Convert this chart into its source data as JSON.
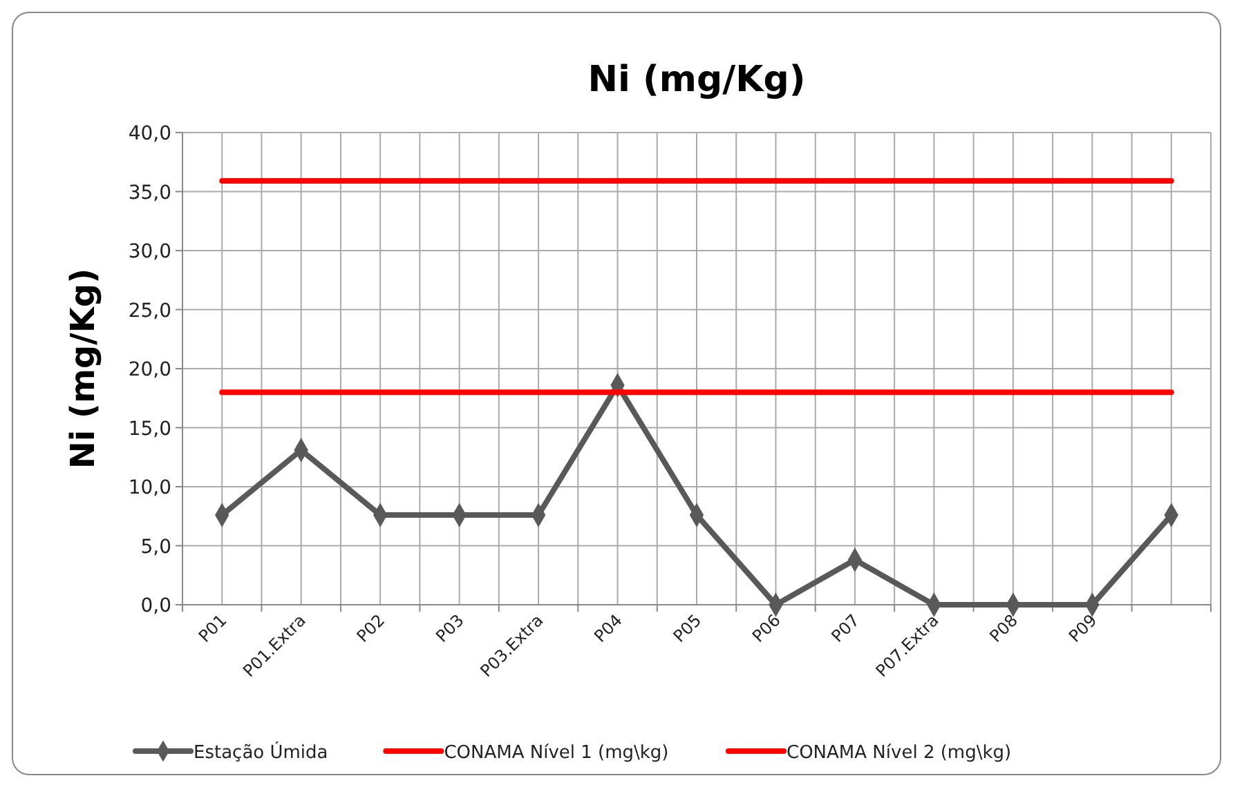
{
  "chart_data": {
    "type": "line",
    "title": "Ni (mg/Kg)",
    "ylabel": "Ni (mg/Kg)",
    "categories": [
      "P01",
      "P01.Extra",
      "P02",
      "P03",
      "P03.Extra",
      "P04",
      "P05",
      "P06",
      "P07",
      "P07.Extra",
      "P08",
      "P09",
      null
    ],
    "series": [
      {
        "name": "Estação Úmida",
        "color": "#595959",
        "marker": "diamond",
        "values": [
          7.6,
          13.1,
          7.6,
          7.6,
          7.6,
          18.6,
          7.6,
          0,
          3.8,
          0,
          0,
          0,
          7.6
        ]
      },
      {
        "name": "CONAMA Nível 1 (mg\\kg)",
        "color": "#ff0000",
        "marker": "none",
        "values": [
          18,
          18,
          18,
          18,
          18,
          18,
          18,
          18,
          18,
          18,
          18,
          18,
          18
        ]
      },
      {
        "name": "CONAMA Nível 2 (mg\\kg)",
        "color": "#ff0000",
        "marker": "none",
        "values": [
          35.9,
          35.9,
          35.9,
          35.9,
          35.9,
          35.9,
          35.9,
          35.9,
          35.9,
          35.9,
          35.9,
          35.9,
          35.9
        ]
      }
    ],
    "ylim": [
      0,
      40
    ],
    "yticks": [
      {
        "value": 0,
        "label": "0,0"
      },
      {
        "value": 5,
        "label": "5,0"
      },
      {
        "value": 10,
        "label": "10,0"
      },
      {
        "value": 15,
        "label": "15,0"
      },
      {
        "value": 20,
        "label": "20,0"
      },
      {
        "value": 25,
        "label": "25,0"
      },
      {
        "value": 30,
        "label": "30,0"
      },
      {
        "value": 35,
        "label": "35,0"
      },
      {
        "value": 40,
        "label": "40,0"
      }
    ],
    "grid": true,
    "legend": "bottom"
  }
}
